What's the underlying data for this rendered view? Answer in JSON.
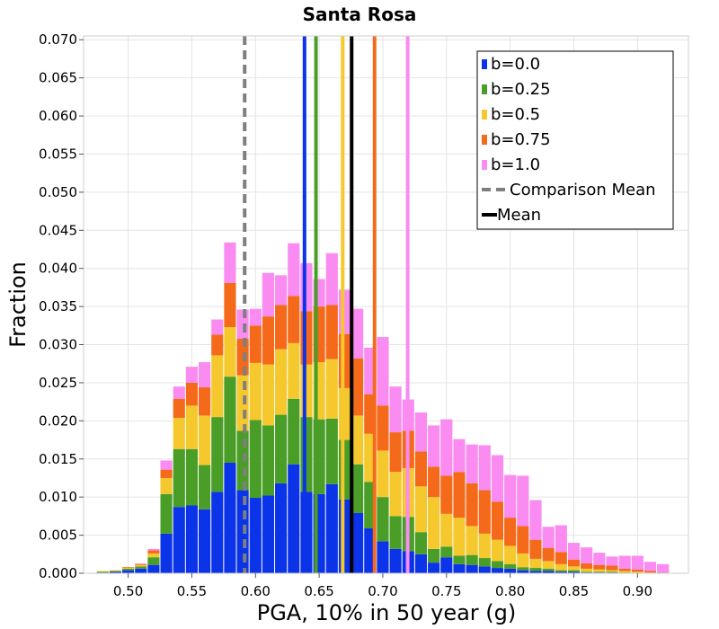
{
  "chart_data": {
    "type": "bar",
    "stacked": true,
    "title": "Santa Rosa",
    "xlabel": "PGA, 10% in 50 year (g)",
    "ylabel": "Fraction",
    "xlim": [
      0.465,
      0.94
    ],
    "ylim": [
      0.0,
      0.0705
    ],
    "bin_width": 0.01,
    "grid": true,
    "legend_position": "top-right",
    "x_ticks": [
      0.5,
      0.55,
      0.6,
      0.65,
      0.7,
      0.75,
      0.8,
      0.85,
      0.9
    ],
    "x_tick_labels": [
      "0.50",
      "0.55",
      "0.60",
      "0.65",
      "0.70",
      "0.75",
      "0.80",
      "0.85",
      "0.90"
    ],
    "y_ticks": [
      0.0,
      0.005,
      0.01,
      0.015,
      0.02,
      0.025,
      0.03,
      0.035,
      0.04,
      0.045,
      0.05,
      0.055,
      0.06,
      0.065,
      0.07
    ],
    "y_tick_labels": [
      "0.000",
      "0.005",
      "0.010",
      "0.015",
      "0.020",
      "0.025",
      "0.030",
      "0.035",
      "0.040",
      "0.045",
      "0.050",
      "0.055",
      "0.060",
      "0.065",
      "0.070"
    ],
    "bin_starts": [
      0.475,
      0.485,
      0.495,
      0.505,
      0.515,
      0.525,
      0.535,
      0.545,
      0.555,
      0.565,
      0.575,
      0.585,
      0.595,
      0.605,
      0.615,
      0.625,
      0.635,
      0.645,
      0.655,
      0.665,
      0.675,
      0.685,
      0.695,
      0.705,
      0.715,
      0.725,
      0.735,
      0.745,
      0.755,
      0.765,
      0.775,
      0.785,
      0.795,
      0.805,
      0.815,
      0.825,
      0.835,
      0.845,
      0.855,
      0.865,
      0.875,
      0.885,
      0.895,
      0.905,
      0.915
    ],
    "series": [
      {
        "name": "b=0.0",
        "color": "#0b33e8",
        "values": [
          0.0001,
          0.0002,
          0.0004,
          0.0006,
          0.0011,
          0.0052,
          0.0087,
          0.0089,
          0.0084,
          0.0107,
          0.0145,
          0.0109,
          0.0099,
          0.0102,
          0.0118,
          0.0143,
          0.0107,
          0.0104,
          0.0117,
          0.0097,
          0.0079,
          0.0059,
          0.0042,
          0.0032,
          0.0029,
          0.0025,
          0.0014,
          0.0021,
          0.0012,
          0.0011,
          0.0009,
          0.0007,
          0.0006,
          0.0004,
          0.0003,
          0.0003,
          0.0002,
          0.0002,
          0.0001,
          0.0001,
          0.0001,
          0.0,
          0.0,
          0.0,
          0.0
        ]
      },
      {
        "name": "b=0.25",
        "color": "#4a9e28",
        "values": [
          0.0001,
          0.0001,
          0.0002,
          0.0003,
          0.001,
          0.0052,
          0.0076,
          0.0074,
          0.0058,
          0.0098,
          0.0113,
          0.0078,
          0.0102,
          0.0092,
          0.009,
          0.0086,
          0.0098,
          0.0098,
          0.0086,
          0.0078,
          0.0064,
          0.0061,
          0.0058,
          0.0043,
          0.0045,
          0.0029,
          0.0018,
          0.0014,
          0.0011,
          0.0013,
          0.0011,
          0.0009,
          0.0006,
          0.0004,
          0.0004,
          0.0003,
          0.0002,
          0.0002,
          0.0001,
          0.0001,
          0.0001,
          0.0001,
          0.0,
          0.0,
          0.0
        ]
      },
      {
        "name": "b=0.5",
        "color": "#f5c82e",
        "values": [
          0.0001,
          0.0001,
          0.0001,
          0.0002,
          0.0005,
          0.0021,
          0.0041,
          0.0057,
          0.0065,
          0.0081,
          0.0065,
          0.0073,
          0.0075,
          0.008,
          0.0086,
          0.0073,
          0.0069,
          0.0075,
          0.0078,
          0.0068,
          0.0064,
          0.0063,
          0.0061,
          0.0058,
          0.0064,
          0.006,
          0.0068,
          0.0043,
          0.005,
          0.0038,
          0.0032,
          0.0028,
          0.0024,
          0.0018,
          0.0012,
          0.001,
          0.0008,
          0.0005,
          0.0004,
          0.0003,
          0.0002,
          0.0002,
          0.0002,
          0.0001,
          0.0
        ]
      },
      {
        "name": "b=0.75",
        "color": "#f46a1a",
        "values": [
          0.0,
          0.0,
          0.0001,
          0.0001,
          0.0004,
          0.0011,
          0.0025,
          0.003,
          0.0037,
          0.0027,
          0.0058,
          0.0048,
          0.0049,
          0.0063,
          0.0058,
          0.0062,
          0.007,
          0.0073,
          0.0071,
          0.0071,
          0.0075,
          0.0052,
          0.0059,
          0.0052,
          0.0049,
          0.0046,
          0.004,
          0.005,
          0.006,
          0.0056,
          0.0057,
          0.005,
          0.0037,
          0.0036,
          0.0025,
          0.0017,
          0.0016,
          0.0009,
          0.0007,
          0.0006,
          0.0006,
          0.0003,
          0.0003,
          0.0002,
          0.0001
        ]
      },
      {
        "name": "b=1.0",
        "color": "#f98bf1",
        "values": [
          0.0,
          0.0,
          0.0,
          0.0001,
          0.0002,
          0.0012,
          0.0016,
          0.0021,
          0.0033,
          0.002,
          0.0053,
          0.0038,
          0.0022,
          0.0057,
          0.0039,
          0.0069,
          0.0063,
          0.0036,
          0.0068,
          0.0058,
          0.0065,
          0.0061,
          0.009,
          0.006,
          0.0041,
          0.0051,
          0.0054,
          0.0074,
          0.0043,
          0.0051,
          0.0059,
          0.0061,
          0.0056,
          0.0066,
          0.0052,
          0.0028,
          0.0035,
          0.0022,
          0.0021,
          0.0016,
          0.0012,
          0.0017,
          0.0018,
          0.0012,
          0.0011
        ]
      }
    ],
    "vertical_lines": [
      {
        "name": "b=0.0",
        "x": 0.6385,
        "color": "#0b33e8",
        "style": "solid"
      },
      {
        "name": "b=0.25",
        "x": 0.6475,
        "color": "#4a9e28",
        "style": "solid"
      },
      {
        "name": "b=0.5",
        "x": 0.6685,
        "color": "#f5c82e",
        "style": "solid"
      },
      {
        "name": "b=0.75",
        "x": 0.6935,
        "color": "#f46a1a",
        "style": "solid"
      },
      {
        "name": "b=1.0",
        "x": 0.7195,
        "color": "#f98bf1",
        "style": "solid"
      },
      {
        "name": "Comparison Mean",
        "x": 0.5915,
        "color": "#7f7f7f",
        "style": "dashed"
      },
      {
        "name": "Mean",
        "x": 0.6755,
        "color": "#000000",
        "style": "solid"
      }
    ],
    "legend": [
      {
        "label": "b=0.0",
        "color": "#0b33e8",
        "kind": "box"
      },
      {
        "label": "b=0.25",
        "color": "#4a9e28",
        "kind": "box"
      },
      {
        "label": "b=0.5",
        "color": "#f5c82e",
        "kind": "box"
      },
      {
        "label": "b=0.75",
        "color": "#f46a1a",
        "kind": "box"
      },
      {
        "label": "b=1.0",
        "color": "#f98bf1",
        "kind": "box"
      },
      {
        "label": "Comparison Mean",
        "color": "#7f7f7f",
        "kind": "dashed"
      },
      {
        "label": "Mean",
        "color": "#000000",
        "kind": "line"
      }
    ]
  }
}
